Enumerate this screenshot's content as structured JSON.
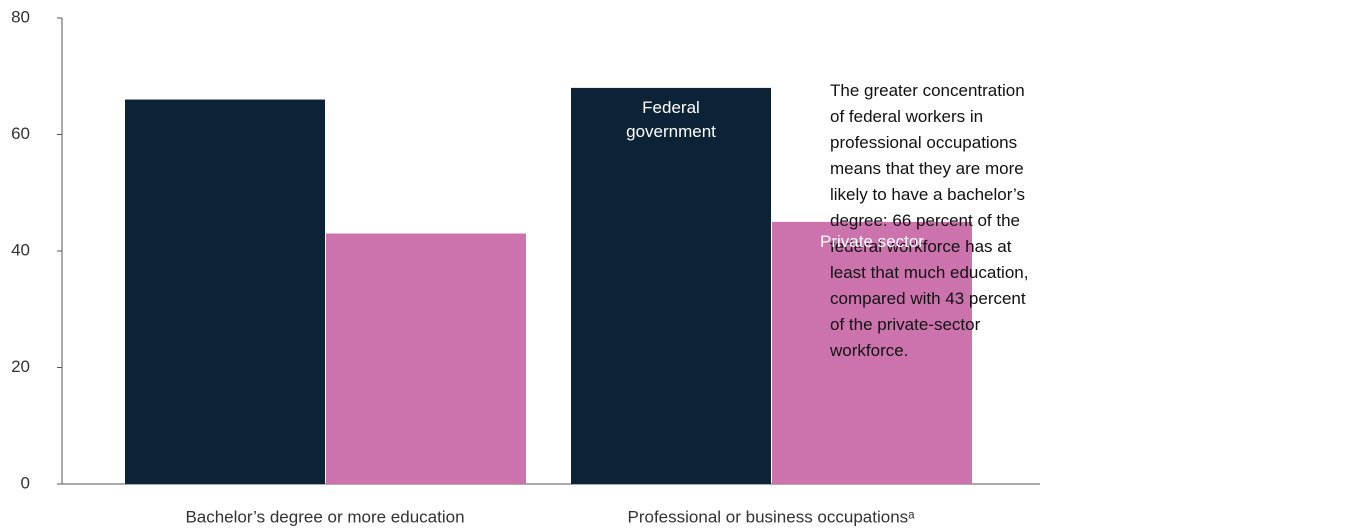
{
  "chart_data": {
    "type": "bar",
    "categories": [
      "Bachelor’s degree or more education",
      "Professional or business occupationsᵃ"
    ],
    "series": [
      {
        "name": "Federal government",
        "color": "#0c2237",
        "values": [
          66,
          68
        ]
      },
      {
        "name": "Private sector",
        "color": "#cc73ae",
        "values": [
          43,
          45
        ]
      }
    ],
    "ylim": [
      0,
      80
    ],
    "yticks": [
      0,
      20,
      40,
      60,
      80
    ],
    "grid": false,
    "annotation": "The greater concentration of federal workers in professional occupations means that they are more likely to have a bachelor’s degree: 66 percent of the federal workforce has at least that much education, compared with 43 percent of the private-sector workforce."
  }
}
